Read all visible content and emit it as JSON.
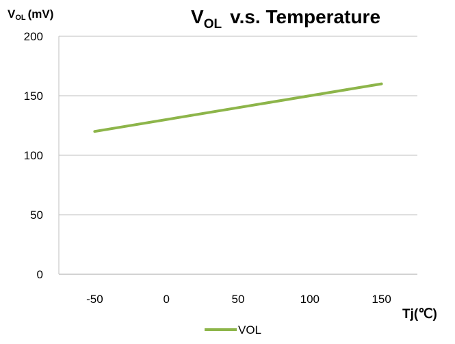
{
  "chart_data": {
    "type": "line",
    "title": {
      "main": "V",
      "sub": "OL",
      "rest": "v.s. Temperature"
    },
    "ylabel": {
      "main": "V",
      "sub": "OL",
      "rest": "(mV)"
    },
    "xlabel": "Tj(℃)",
    "x_ticks": [
      "-50",
      "0",
      "50",
      "100",
      "150"
    ],
    "y_ticks": [
      "0",
      "50",
      "100",
      "150",
      "200"
    ],
    "xlim": [
      -75,
      175
    ],
    "ylim": [
      0,
      200
    ],
    "grid": "horizontal",
    "legend_position": "bottom",
    "series": [
      {
        "name": "VOL",
        "color": "#8DB54A",
        "x": [
          -50,
          150
        ],
        "y": [
          120,
          160
        ]
      }
    ]
  },
  "colors": {
    "grid": "#BFBFBF",
    "axis": "#A6A6A6"
  }
}
